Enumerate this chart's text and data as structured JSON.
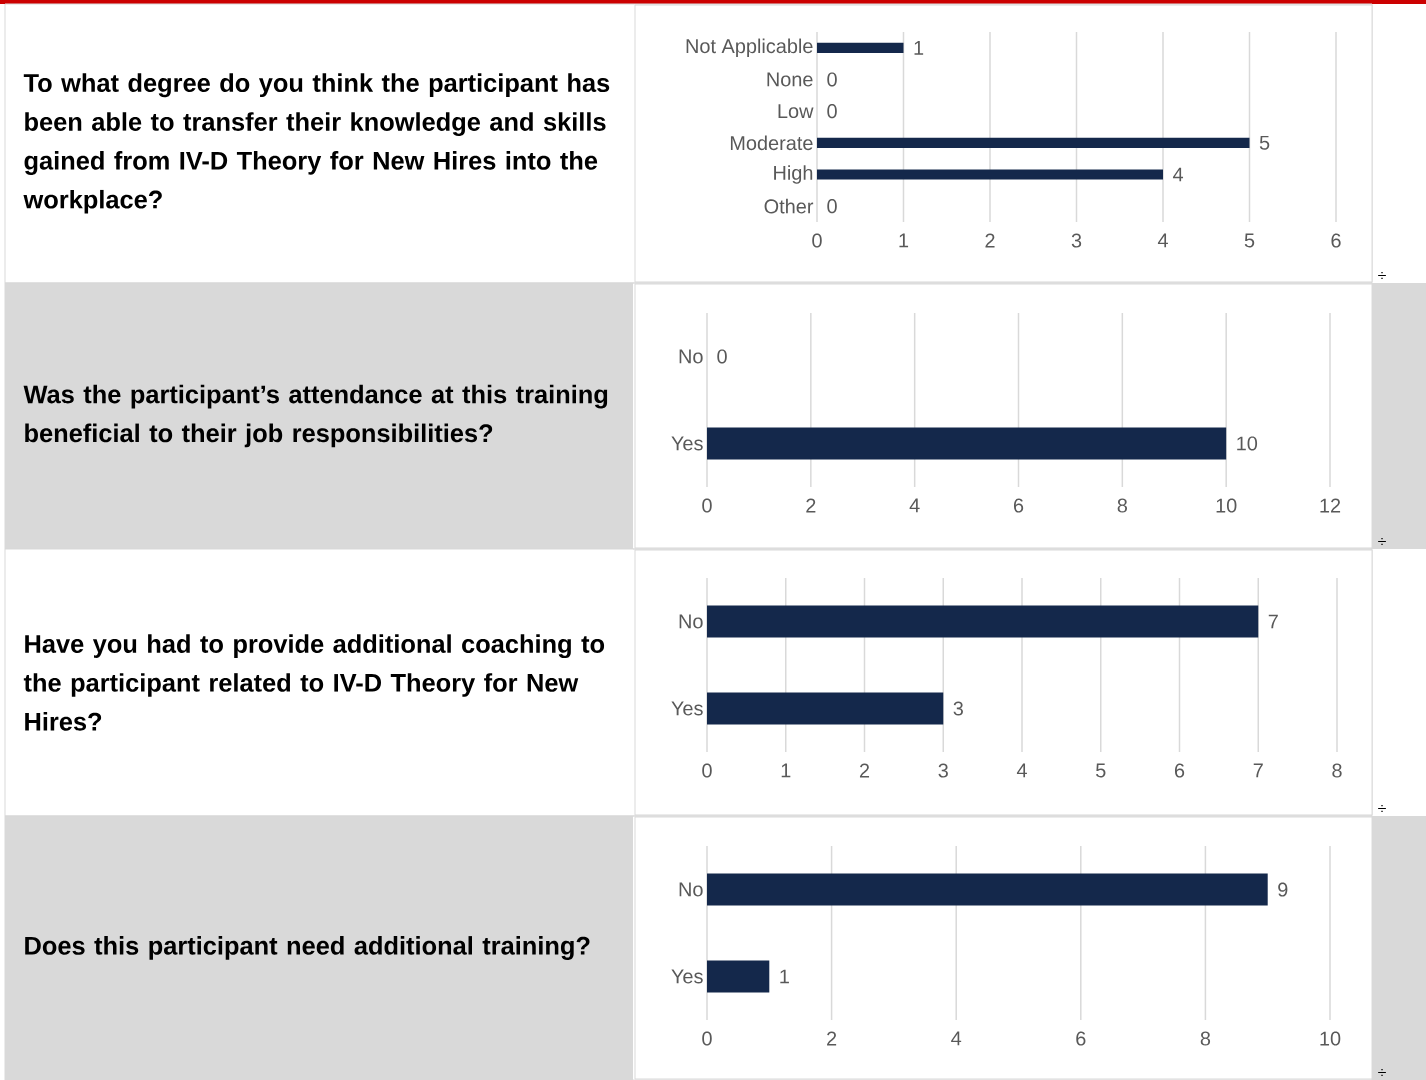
{
  "chart_data": [
    {
      "type": "bar",
      "orientation": "horizontal",
      "title": "To what degree do you think the participant has been able to transfer their knowledge and skills gained from IV-D Theory for New Hires into the workplace?",
      "categories": [
        "Not Applicable",
        "None",
        "Low",
        "Moderate",
        "High",
        "Other"
      ],
      "values": [
        1,
        0,
        0,
        5,
        4,
        0
      ],
      "color": "#14284b",
      "xlim": [
        0,
        6
      ],
      "xticks": [
        0,
        1,
        2,
        3,
        4,
        5,
        6
      ],
      "grid": "x",
      "data_labels": true,
      "annotations": [
        "÷"
      ]
    },
    {
      "type": "bar",
      "orientation": "horizontal",
      "title": "Was the participant’s attendance at this training beneficial to their job responsibilities?",
      "categories": [
        "No",
        "Yes"
      ],
      "values": [
        0,
        10
      ],
      "color": "#14284b",
      "xlim": [
        0,
        12
      ],
      "xticks": [
        0,
        2,
        4,
        6,
        8,
        10,
        12
      ],
      "grid": "x",
      "data_labels": true,
      "annotations": [
        "÷"
      ]
    },
    {
      "type": "bar",
      "orientation": "horizontal",
      "title": "Have you had to provide additional coaching to the participant related to IV-D Theory for New Hires?",
      "categories": [
        "No",
        "Yes"
      ],
      "values": [
        7,
        3
      ],
      "color": "#14284b",
      "xlim": [
        0,
        8
      ],
      "xticks": [
        0,
        1,
        2,
        3,
        4,
        5,
        6,
        7,
        8
      ],
      "grid": "x",
      "data_labels": true,
      "annotations": [
        "÷"
      ]
    },
    {
      "type": "bar",
      "orientation": "horizontal",
      "title": "Does this participant need additional training?",
      "categories": [
        "No",
        "Yes"
      ],
      "values": [
        9,
        1
      ],
      "color": "#14284b",
      "xlim": [
        0,
        10
      ],
      "xticks": [
        0,
        2,
        4,
        6,
        8,
        10
      ],
      "grid": "x",
      "data_labels": true,
      "annotations": [
        "÷"
      ]
    }
  ]
}
